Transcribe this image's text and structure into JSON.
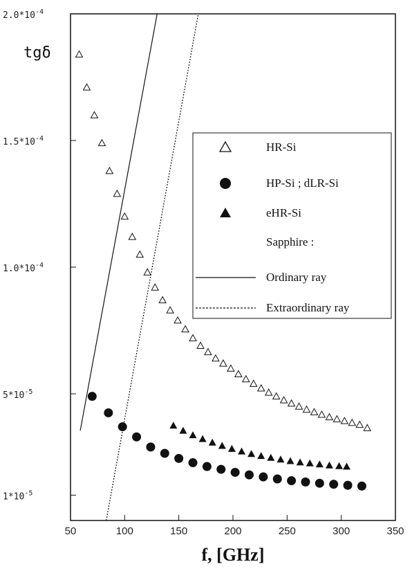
{
  "chart_data": {
    "type": "scatter",
    "xlabel": "f, [GHz]",
    "ylabel": "tgδ",
    "xlim": [
      50,
      350
    ],
    "ylim": [
      0,
      0.0002
    ],
    "x_ticks": [
      {
        "value": 50,
        "label": "50"
      },
      {
        "value": 100,
        "label": "100"
      },
      {
        "value": 150,
        "label": "150"
      },
      {
        "value": 200,
        "label": "200"
      },
      {
        "value": 250,
        "label": "250"
      },
      {
        "value": 300,
        "label": "300"
      },
      {
        "value": 350,
        "label": "350"
      }
    ],
    "y_ticks": [
      {
        "value": 1e-05,
        "label": "1*10",
        "exp": "-5"
      },
      {
        "value": 5e-05,
        "label": "5*10",
        "exp": "-5"
      },
      {
        "value": 0.0001,
        "label": "1.0*10",
        "exp": "-4"
      },
      {
        "value": 0.00015,
        "label": "1.5*10",
        "exp": "-4"
      },
      {
        "value": 0.0002,
        "label": "2.0*10",
        "exp": "-4"
      }
    ],
    "grid": false,
    "legend_position": "right",
    "legend_header": "Sapphire :",
    "series": [
      {
        "name": "HR-Si",
        "marker": "triangle-open",
        "x": [
          58,
          65,
          72,
          79,
          86,
          93,
          100,
          107,
          114,
          121,
          128,
          135,
          142,
          149,
          156,
          163,
          170,
          177,
          184,
          191,
          198,
          205,
          212,
          219,
          226,
          233,
          240,
          247,
          254,
          261,
          268,
          275,
          282,
          289,
          296,
          303,
          310,
          317,
          324
        ],
        "y": [
          0.000184,
          0.000171,
          0.00016,
          0.000149,
          0.000138,
          0.000129,
          0.00012,
          0.000112,
          0.000105,
          9.8e-05,
          9.2e-05,
          8.7e-05,
          8.3e-05,
          7.9e-05,
          7.55e-05,
          7.2e-05,
          6.9e-05,
          6.65e-05,
          6.4e-05,
          6.2e-05,
          6e-05,
          5.78e-05,
          5.58e-05,
          5.4e-05,
          5.22e-05,
          5.05e-05,
          4.9e-05,
          4.75e-05,
          4.62e-05,
          4.5e-05,
          4.38e-05,
          4.28e-05,
          4.18e-05,
          4.08e-05,
          4e-05,
          3.93e-05,
          3.86e-05,
          3.78e-05,
          3.65e-05
        ]
      },
      {
        "name": "HP-Si ; dLR-Si",
        "marker": "circle-filled",
        "x": [
          70,
          85,
          98,
          111,
          124,
          137,
          150,
          163,
          176,
          189,
          202,
          215,
          228,
          241,
          254,
          267,
          280,
          293,
          306,
          319
        ],
        "y": [
          4.9e-05,
          4.25e-05,
          3.7e-05,
          3.3e-05,
          2.9e-05,
          2.65e-05,
          2.45e-05,
          2.28e-05,
          2.13e-05,
          2.02e-05,
          1.9e-05,
          1.8e-05,
          1.72e-05,
          1.64e-05,
          1.57e-05,
          1.52e-05,
          1.47e-05,
          1.43e-05,
          1.39e-05,
          1.36e-05
        ]
      },
      {
        "name": "eHR-Si",
        "marker": "triangle-filled",
        "x": [
          145,
          154,
          163,
          172,
          181,
          190,
          199,
          208,
          217,
          226,
          235,
          244,
          253,
          262,
          271,
          280,
          289,
          298,
          305
        ],
        "y": [
          3.75e-05,
          3.55e-05,
          3.37e-05,
          3.22e-05,
          3.08e-05,
          2.95e-05,
          2.83e-05,
          2.73e-05,
          2.63e-05,
          2.55e-05,
          2.48e-05,
          2.41e-05,
          2.35e-05,
          2.3e-05,
          2.26e-05,
          2.22e-05,
          2.18e-05,
          2.15e-05,
          2.13e-05
        ]
      },
      {
        "name": "Ordinary ray",
        "marker": "line-solid",
        "x": [
          59,
          130
        ],
        "y": [
          3.55e-05,
          0.0002
        ]
      },
      {
        "name": "Extraordinary ray",
        "marker": "line-dotted",
        "x": [
          83,
          168
        ],
        "y": [
          0.0,
          0.0002
        ]
      }
    ]
  }
}
